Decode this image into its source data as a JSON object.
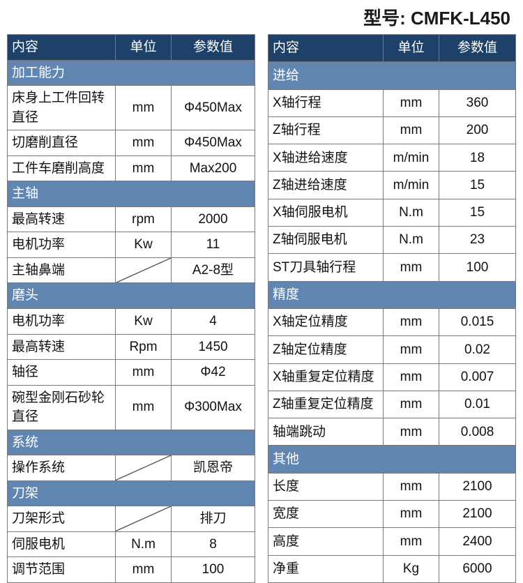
{
  "colors": {
    "header_bg": "#1d4168",
    "section_bg": "#6186b2",
    "header_text": "#ffffff",
    "cell_text": "#111111",
    "border": "#777777",
    "page_bg": "#ffffff"
  },
  "typography": {
    "title_fontsize": 26,
    "cell_fontsize": 19
  },
  "model_label": "型号: CMFK-L450",
  "header": {
    "content": "内容",
    "unit": "单位",
    "value": "参数值"
  },
  "left": {
    "sections": [
      {
        "title": "加工能力",
        "rows": [
          {
            "label": "床身上工件回转直径",
            "unit": "mm",
            "value": "Φ450Max"
          },
          {
            "label": "切磨削直径",
            "unit": "mm",
            "value": "Φ450Max"
          },
          {
            "label": "工件车磨削高度",
            "unit": "mm",
            "value": "Max200"
          }
        ]
      },
      {
        "title": "主轴",
        "rows": [
          {
            "label": "最高转速",
            "unit": "rpm",
            "value": "2000"
          },
          {
            "label": "电机功率",
            "unit": "Kw",
            "value": "11"
          },
          {
            "label": "主轴鼻端",
            "unit": "__DIAG__",
            "value": "A2-8型"
          }
        ]
      },
      {
        "title": "磨头",
        "rows": [
          {
            "label": "电机功率",
            "unit": "Kw",
            "value": "4"
          },
          {
            "label": "最高转速",
            "unit": "Rpm",
            "value": "1450"
          },
          {
            "label": "轴径",
            "unit": "mm",
            "value": "Φ42"
          },
          {
            "label": "碗型金刚石砂轮直径",
            "unit": "mm",
            "value": "Φ300Max"
          }
        ]
      },
      {
        "title": "系统",
        "rows": [
          {
            "label": "操作系统",
            "unit": "__DIAG__",
            "value": "凯恩帝"
          }
        ]
      },
      {
        "title": "刀架",
        "rows": [
          {
            "label": "刀架形式",
            "unit": "__DIAG__",
            "value": "排刀"
          },
          {
            "label": "伺服电机",
            "unit": "N.m",
            "value": "8"
          },
          {
            "label": "调节范围",
            "unit": "mm",
            "value": "100"
          }
        ]
      }
    ]
  },
  "right": {
    "sections": [
      {
        "title": "进给",
        "rows": [
          {
            "label": "X轴行程",
            "unit": "mm",
            "value": "360"
          },
          {
            "label": "Z轴行程",
            "unit": "mm",
            "value": "200"
          },
          {
            "label": "X轴进给速度",
            "unit": "m/min",
            "value": "18"
          },
          {
            "label": "Z轴进给速度",
            "unit": "m/min",
            "value": "15"
          },
          {
            "label": "X轴伺服电机",
            "unit": "N.m",
            "value": "15"
          },
          {
            "label": "Z轴伺服电机",
            "unit": "N.m",
            "value": "23"
          },
          {
            "label": "ST刀具轴行程",
            "unit": "mm",
            "value": "100"
          }
        ]
      },
      {
        "title": "精度",
        "rows": [
          {
            "label": "X轴定位精度",
            "unit": "mm",
            "value": "0.015"
          },
          {
            "label": "Z轴定位精度",
            "unit": "mm",
            "value": "0.02"
          },
          {
            "label": "X轴重复定位精度",
            "unit": "mm",
            "value": "0.007"
          },
          {
            "label": "Z轴重复定位精度",
            "unit": "mm",
            "value": "0.01"
          },
          {
            "label": "轴端跳动",
            "unit": "mm",
            "value": "0.008"
          }
        ]
      },
      {
        "title": "其他",
        "rows": [
          {
            "label": "长度",
            "unit": "mm",
            "value": "2100"
          },
          {
            "label": "宽度",
            "unit": "mm",
            "value": "2100"
          },
          {
            "label": "高度",
            "unit": "mm",
            "value": "2400"
          },
          {
            "label": "净重",
            "unit": "Kg",
            "value": "6000"
          }
        ]
      }
    ]
  }
}
